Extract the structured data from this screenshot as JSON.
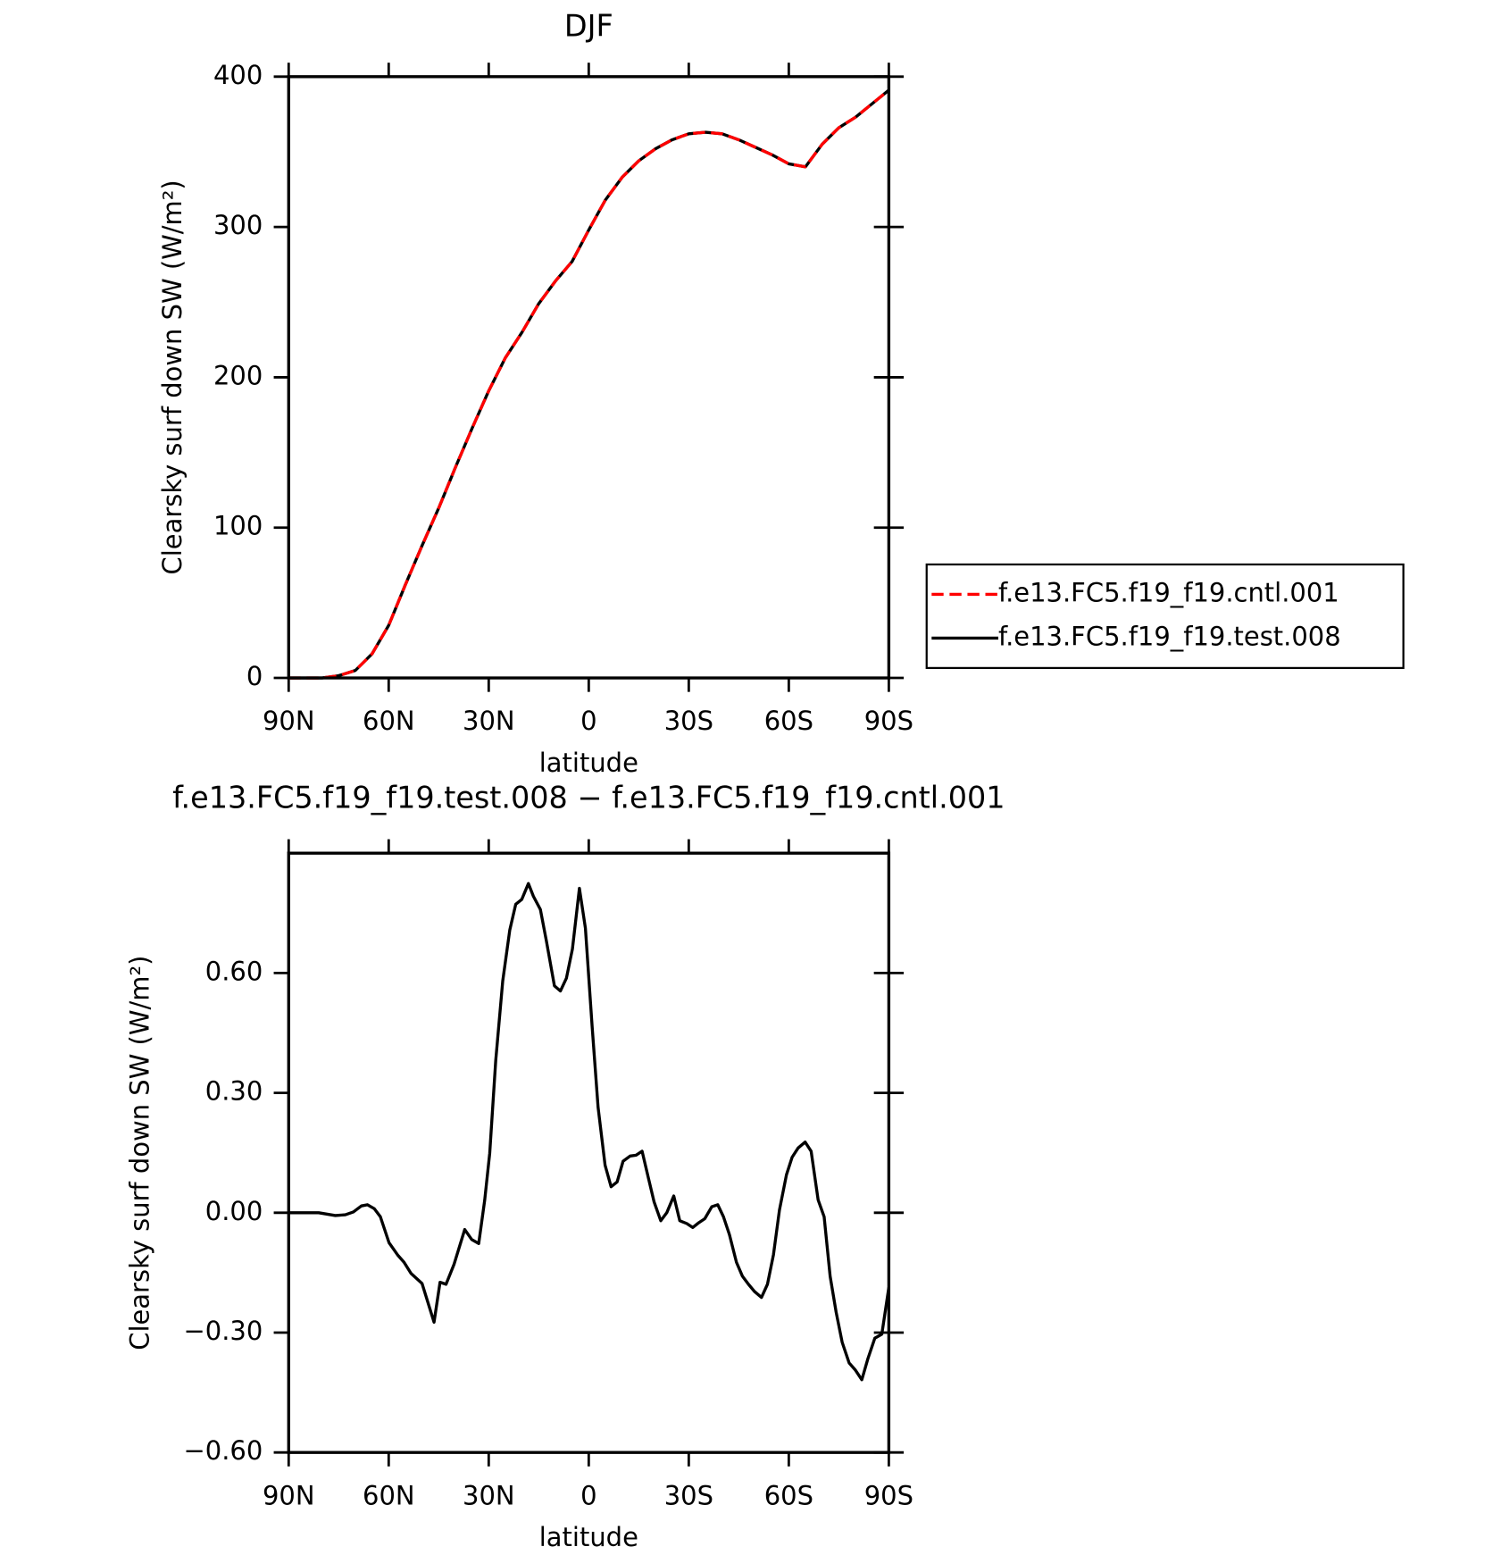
{
  "chart_data": [
    {
      "type": "line",
      "title": "DJF",
      "xlabel": "latitude",
      "ylabel": "Clearsky surf down SW (W/m²)",
      "xlim": [
        90,
        -90
      ],
      "xticks": [
        {
          "value": 90,
          "label": "90N"
        },
        {
          "value": 60,
          "label": "60N"
        },
        {
          "value": 30,
          "label": "30N"
        },
        0,
        {
          "value": -30,
          "label": "30S"
        },
        {
          "value": -60,
          "label": "60S"
        },
        {
          "value": -90,
          "label": "90S"
        }
      ],
      "ylim": [
        0,
        400
      ],
      "yticks": [
        0,
        100,
        200,
        300,
        400
      ],
      "legend": "right",
      "x": [
        90,
        85,
        80,
        75,
        70,
        65,
        60,
        55,
        50,
        45,
        40,
        35,
        30,
        25,
        20,
        15,
        10,
        5,
        0,
        -5,
        -10,
        -15,
        -20,
        -25,
        -30,
        -35,
        -40,
        -45,
        -50,
        -55,
        -60,
        -65,
        -70,
        -75,
        -80,
        -85,
        -90
      ],
      "series": [
        {
          "name": "f.e13.FC5.f19_f19.cntl.001",
          "color": "#ff0000",
          "dashed": true,
          "values": [
            0,
            0,
            0,
            1.5,
            5,
            16,
            35,
            62,
            88,
            113,
            140,
            166,
            191,
            213,
            230,
            249,
            264,
            277,
            298,
            318,
            333,
            344,
            352,
            358,
            362,
            363,
            362,
            358,
            353,
            348,
            342,
            340,
            355,
            366,
            373,
            382,
            391
          ]
        },
        {
          "name": "f.e13.FC5.f19_f19.test.008",
          "color": "#000000",
          "dashed": false,
          "values": [
            0,
            0,
            0,
            1.5,
            5,
            16,
            35,
            62,
            88,
            113,
            140,
            166,
            191,
            213,
            230,
            249,
            264,
            277,
            298,
            318,
            333,
            344,
            352,
            358,
            362,
            363,
            362,
            358,
            353,
            348,
            342,
            340,
            355,
            366,
            373,
            382,
            391
          ]
        }
      ]
    },
    {
      "type": "line",
      "title": "f.e13.FC5.f19_f19.test.008 − f.e13.FC5.f19_f19.cntl.001",
      "xlabel": "latitude",
      "ylabel": "Clearsky surf down SW (W/m²)",
      "xlim": [
        90,
        -90
      ],
      "xticks": [
        {
          "value": 90,
          "label": "90N"
        },
        {
          "value": 60,
          "label": "60N"
        },
        {
          "value": 30,
          "label": "30N"
        },
        0,
        {
          "value": -30,
          "label": "30S"
        },
        {
          "value": -60,
          "label": "60S"
        },
        {
          "value": -90,
          "label": "90S"
        }
      ],
      "ylim": [
        -0.6,
        0.9
      ],
      "yticks": [
        {
          "value": -0.6,
          "label": "−0.60"
        },
        {
          "value": -0.3,
          "label": "−0.30"
        },
        {
          "value": 0,
          "label": "0.00"
        },
        {
          "value": 0.3,
          "label": "0.30"
        },
        {
          "value": 0.6,
          "label": "0.60"
        }
      ],
      "x": [
        90,
        81,
        76,
        73,
        70.6,
        68.2,
        66.4,
        64.3,
        62.5,
        59.9,
        57.2,
        55.4,
        53.3,
        50,
        46.4,
        44.6,
        42.8,
        40.4,
        37.2,
        35.1,
        33,
        31.2,
        29.7,
        27.9,
        25.8,
        23.7,
        21.9,
        20.1,
        18.1,
        16.6,
        14.5,
        12.7,
        10.3,
        8.5,
        6.7,
        4.9,
        2.8,
        1,
        -1,
        -2.8,
        -4.9,
        -6.7,
        -8.5,
        -10.3,
        -12.4,
        -14.2,
        -16,
        -17.8,
        -19.6,
        -21.6,
        -23.4,
        -25.5,
        -27.3,
        -29.4,
        -31.2,
        -33,
        -34.8,
        -36.9,
        -38.7,
        -40.4,
        -42.2,
        -44.3,
        -46.1,
        -47.9,
        -49.7,
        -51.8,
        -53.6,
        -55.4,
        -57.2,
        -59.3,
        -61,
        -62.8,
        -64.9,
        -66.7,
        -68.8,
        -70.6,
        -72.4,
        -74.2,
        -76,
        -78.1,
        -79.9,
        -81.9,
        -83.7,
        -85.8,
        -87.9,
        -90
      ],
      "series": [
        {
          "color": "#000000",
          "dashed": false,
          "values": [
            0,
            0,
            -0.007,
            -0.005,
            0.002,
            0.017,
            0.02,
            0.01,
            -0.01,
            -0.075,
            -0.107,
            -0.124,
            -0.152,
            -0.177,
            -0.274,
            -0.174,
            -0.179,
            -0.129,
            -0.042,
            -0.067,
            -0.077,
            0.032,
            0.149,
            0.381,
            0.58,
            0.707,
            0.772,
            0.784,
            0.824,
            0.792,
            0.759,
            0.68,
            0.568,
            0.555,
            0.587,
            0.66,
            0.812,
            0.712,
            0.468,
            0.264,
            0.119,
            0.065,
            0.077,
            0.129,
            0.142,
            0.144,
            0.154,
            0.09,
            0.027,
            -0.02,
            0,
            0.042,
            -0.02,
            -0.027,
            -0.037,
            -0.025,
            -0.015,
            0.015,
            0.02,
            -0.01,
            -0.055,
            -0.124,
            -0.159,
            -0.179,
            -0.197,
            -0.212,
            -0.179,
            -0.105,
            0.007,
            0.095,
            0.139,
            0.162,
            0.177,
            0.154,
            0.032,
            -0.01,
            -0.159,
            -0.249,
            -0.324,
            -0.376,
            -0.393,
            -0.418,
            -0.366,
            -0.314,
            -0.304,
            -0.187
          ]
        }
      ]
    }
  ]
}
